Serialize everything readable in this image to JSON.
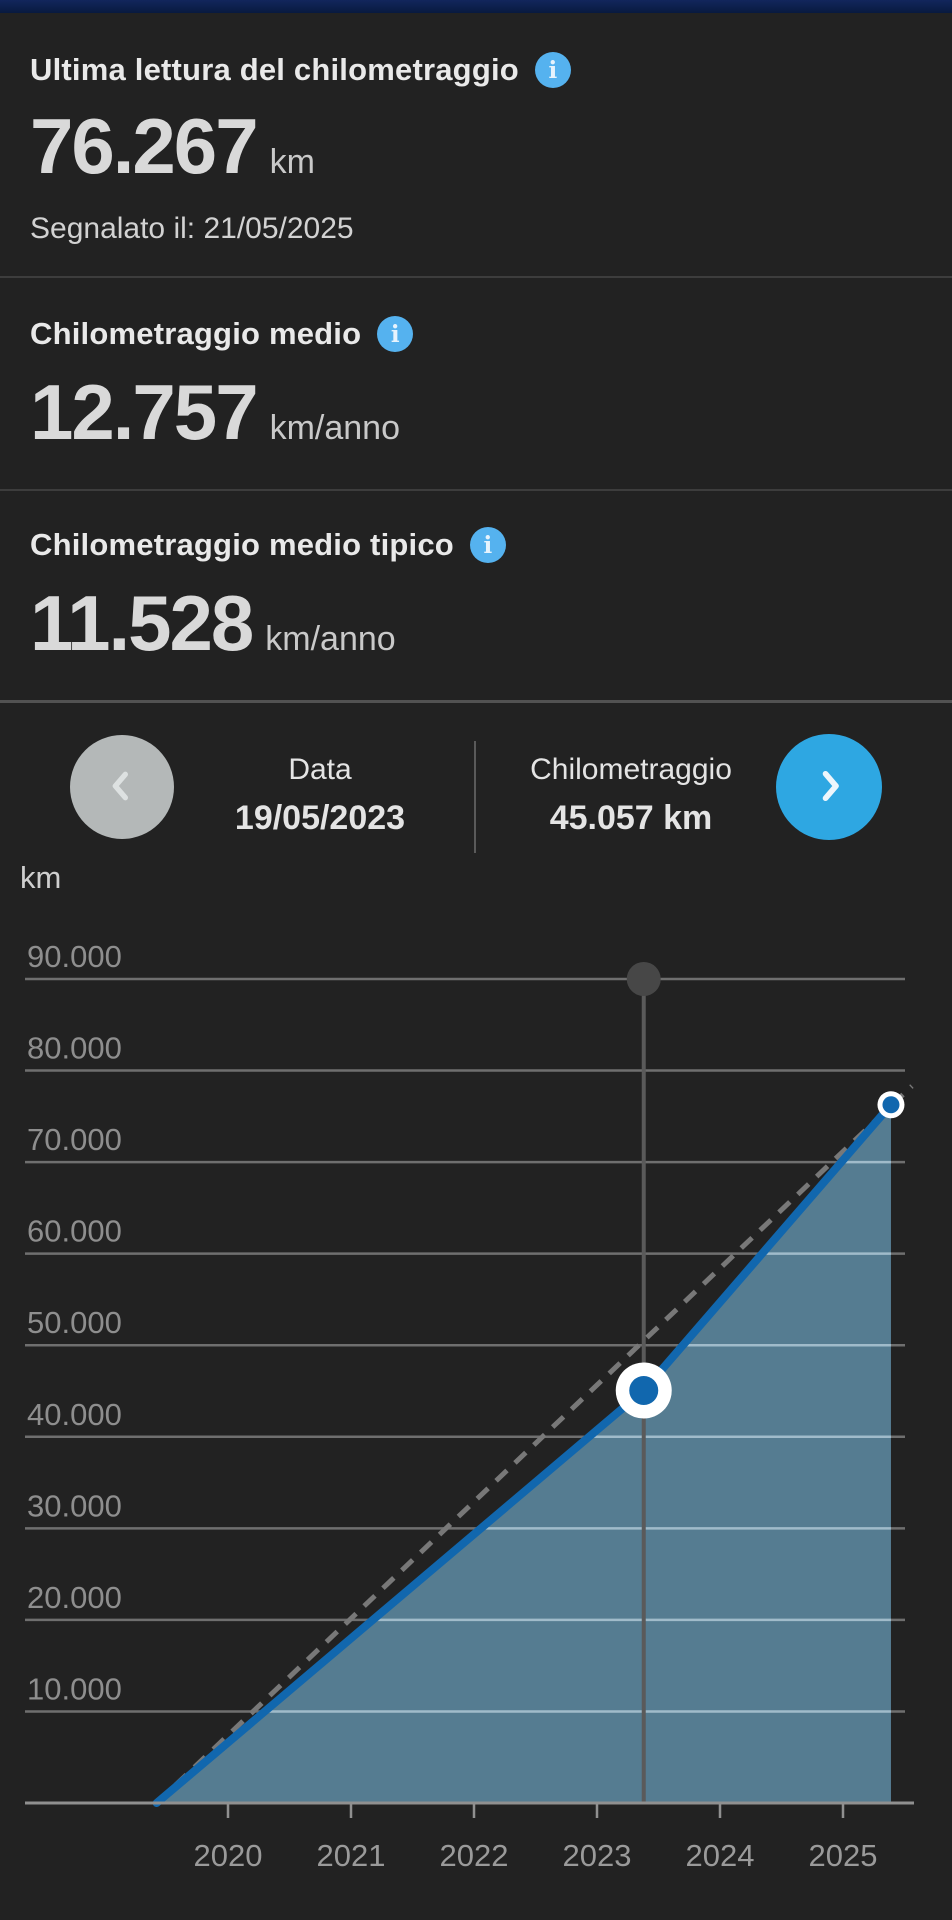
{
  "cards": {
    "last_reading": {
      "title": "Ultima lettura del chilometraggio",
      "value": "76.267",
      "unit": "km",
      "reported": "Segnalato il: 21/05/2025"
    },
    "average": {
      "title": "Chilometraggio medio",
      "value": "12.757",
      "unit": "km/anno"
    },
    "typical_average": {
      "title": "Chilometraggio medio tipico",
      "value": "11.528",
      "unit": "km/anno"
    }
  },
  "history_nav": {
    "date": {
      "label": "Data",
      "value": "19/05/2023"
    },
    "mileage": {
      "label": "Chilometraggio",
      "value": "45.057 km"
    }
  },
  "chart_data": {
    "type": "area",
    "axis_title": "km",
    "x_axis": {
      "tick_years": [
        2020,
        2021,
        2022,
        2023,
        2024,
        2025
      ]
    },
    "y_axis": {
      "max_tick": 90000,
      "ticks": [
        {
          "km": 90000,
          "label": "90.000"
        },
        {
          "km": 80000,
          "label": "80.000"
        },
        {
          "km": 70000,
          "label": "70.000"
        },
        {
          "km": 60000,
          "label": "60.000"
        },
        {
          "km": 50000,
          "label": "50.000"
        },
        {
          "km": 40000,
          "label": "40.000"
        },
        {
          "km": 30000,
          "label": "30.000"
        },
        {
          "km": 20000,
          "label": "20.000"
        },
        {
          "km": 10000,
          "label": "10.000"
        }
      ]
    },
    "series": {
      "actual_mileage": {
        "name": "actual odometer readings",
        "points": [
          {
            "year": 2019.42,
            "km": 0
          },
          {
            "year": 2023.38,
            "km": 45057
          },
          {
            "year": 2025.39,
            "km": 76267
          }
        ]
      },
      "average_reference": {
        "name": "average mileage reference (dashed)",
        "km_per_year": 12757,
        "points": [
          {
            "year": 2019.42,
            "km": 0
          },
          {
            "year": 2025.56,
            "km": 78300
          }
        ]
      }
    },
    "selected_point": {
      "year": 2023.38,
      "km": 45057,
      "date": "19/05/2023",
      "label": "45.057 km"
    },
    "last_point": {
      "year": 2025.39,
      "km": 76267,
      "date": "21/05/2025",
      "label": "76.267 km"
    },
    "typical_km_per_year": 11528
  },
  "colors": {
    "background": "#222222",
    "topbar_navy": "#0d2150",
    "accent_blue": "#2ea7e2",
    "info_blue": "#55b2ef",
    "line_blue": "#1167ae",
    "area_fill": "#5c89a0",
    "dashed_gray": "#787878",
    "grid_gray": "#6f6f6f",
    "axis_gray": "#909090",
    "label_gray": "#8e8e8e",
    "prev_disabled_gray": "#b4b8b8"
  }
}
